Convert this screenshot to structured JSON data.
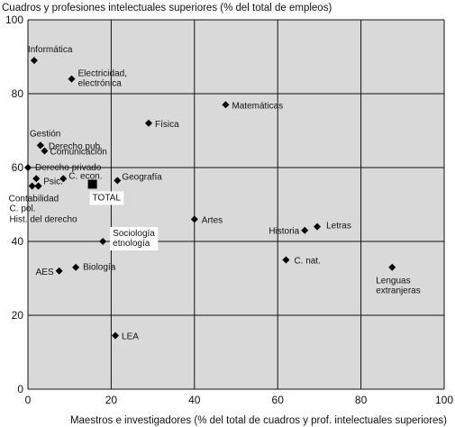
{
  "chart_data": {
    "type": "scatter",
    "title": "",
    "ylabel": "Cuadros y profesiones intelectuales superiores (% del total de empleos)",
    "xlabel": "Maestros e investigadores (% del total de cuadros y prof. intelectuales superiores)",
    "xlim": [
      0,
      100
    ],
    "ylim": [
      0,
      100
    ],
    "xticks": [
      0,
      20,
      40,
      60,
      80,
      100
    ],
    "yticks": [
      0,
      20,
      40,
      60,
      80,
      100
    ],
    "grid": true,
    "colors": {
      "plot_bg": "#d9d9d9",
      "grid": "#111111",
      "marker": "#000000",
      "label_box": "#ffffff"
    },
    "points": [
      {
        "name": "Informática",
        "label_lines": [
          "Informática"
        ],
        "x": 1.5,
        "y": 89,
        "shape": "diamond"
      },
      {
        "name": "Electricidad, electrónica",
        "label_lines": [
          "Electricidad,",
          "electrónica"
        ],
        "x": 10.5,
        "y": 84,
        "shape": "diamond"
      },
      {
        "name": "Matemáticas",
        "label_lines": [
          "Matemáticas"
        ],
        "x": 47.5,
        "y": 77,
        "shape": "diamond"
      },
      {
        "name": "Física",
        "label_lines": [
          "Física"
        ],
        "x": 29,
        "y": 72,
        "shape": "diamond"
      },
      {
        "name": "Gestión",
        "label_lines": [
          "Gestión"
        ],
        "x": 3,
        "y": 66,
        "shape": "diamond"
      },
      {
        "name": "Derecho pub.",
        "label_lines": [
          "Derecho pub."
        ],
        "x": 3,
        "y": 66,
        "shape": "diamond"
      },
      {
        "name": "Comunicación",
        "label_lines": [
          "Comunicación"
        ],
        "x": 4,
        "y": 64.5,
        "shape": "diamond"
      },
      {
        "name": "Derecho privado",
        "label_lines": [
          "Derecho privado"
        ],
        "x": 0,
        "y": 60,
        "shape": "diamond"
      },
      {
        "name": "C. econ.",
        "label_lines": [
          "C. econ."
        ],
        "x": 8.5,
        "y": 57,
        "shape": "diamond"
      },
      {
        "name": "Geografía",
        "label_lines": [
          "Geografía"
        ],
        "x": 21.5,
        "y": 56.5,
        "shape": "diamond"
      },
      {
        "name": "Psic.",
        "label_lines": [
          "Psic."
        ],
        "x": 2,
        "y": 57,
        "shape": "diamond"
      },
      {
        "name": "Contabilidad",
        "label_lines": [
          "Contabilidad"
        ],
        "x": 1,
        "y": 55,
        "shape": "diamond"
      },
      {
        "name": "C. pol.",
        "label_lines": [
          "C. pol."
        ],
        "x": 2.5,
        "y": 55,
        "shape": "diamond"
      },
      {
        "name": "Hist. del derecho",
        "label_lines": [
          "Hist. del derecho"
        ],
        "x": 2.5,
        "y": 55,
        "shape": "diamond"
      },
      {
        "name": "TOTAL",
        "label_lines": [
          "TOTAL"
        ],
        "x": 15.5,
        "y": 55.5,
        "shape": "square"
      },
      {
        "name": "Artes",
        "label_lines": [
          "Artes"
        ],
        "x": 40,
        "y": 46,
        "shape": "diamond"
      },
      {
        "name": "Sociología etnología",
        "label_lines": [
          "Sociología",
          "etnología"
        ],
        "x": 18,
        "y": 40,
        "shape": "diamond"
      },
      {
        "name": "Historia",
        "label_lines": [
          "Historia"
        ],
        "x": 66.5,
        "y": 43,
        "shape": "diamond"
      },
      {
        "name": "Letras",
        "label_lines": [
          "Letras"
        ],
        "x": 69.5,
        "y": 44,
        "shape": "diamond"
      },
      {
        "name": "C. nat.",
        "label_lines": [
          "C. nat."
        ],
        "x": 62,
        "y": 35,
        "shape": "diamond"
      },
      {
        "name": "Lenguas extranjeras",
        "label_lines": [
          "Lenguas",
          "extranjeras"
        ],
        "x": 87.5,
        "y": 33,
        "shape": "diamond"
      },
      {
        "name": "AES",
        "label_lines": [
          "AES"
        ],
        "x": 7.5,
        "y": 32,
        "shape": "diamond"
      },
      {
        "name": "Biología",
        "label_lines": [
          "Biología"
        ],
        "x": 11.5,
        "y": 33,
        "shape": "diamond"
      },
      {
        "name": "LEA",
        "label_lines": [
          "LEA"
        ],
        "x": 21,
        "y": 14.5,
        "shape": "diamond"
      }
    ]
  }
}
